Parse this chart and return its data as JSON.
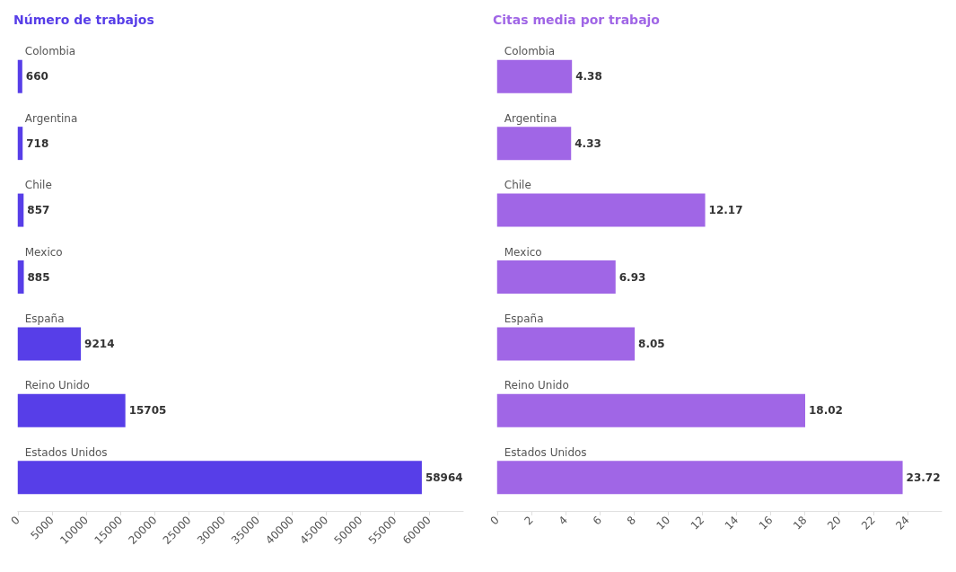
{
  "chart_data": [
    {
      "type": "bar",
      "orientation": "horizontal",
      "title": "Número de trabajos",
      "categories": [
        "Colombia",
        "Argentina",
        "Chile",
        "Mexico",
        "España",
        "Reino Unido",
        "Estados Unidos"
      ],
      "series": [
        {
          "color": "#573ee8",
          "values": [
            660,
            718,
            857,
            885,
            9214,
            15705,
            58964
          ]
        }
      ],
      "xlim": [
        0,
        65000
      ],
      "xticks": [
        0,
        5000,
        10000,
        15000,
        20000,
        25000,
        30000,
        35000,
        40000,
        45000,
        50000,
        55000,
        60000
      ],
      "data_labels": true
    },
    {
      "type": "bar",
      "orientation": "horizontal",
      "title": "Citas media por trabajo",
      "categories": [
        "Colombia",
        "Argentina",
        "Chile",
        "Mexico",
        "España",
        "Reino Unido",
        "Estados Unidos"
      ],
      "series": [
        {
          "color": "#a066e6",
          "values": [
            4.38,
            4.33,
            12.17,
            6.93,
            8.05,
            18.02,
            23.72
          ]
        }
      ],
      "xlim": [
        0,
        26
      ],
      "xticks": [
        0,
        2,
        4,
        6,
        8,
        10,
        12,
        14,
        16,
        18,
        20,
        22,
        24
      ],
      "data_labels": true
    }
  ]
}
